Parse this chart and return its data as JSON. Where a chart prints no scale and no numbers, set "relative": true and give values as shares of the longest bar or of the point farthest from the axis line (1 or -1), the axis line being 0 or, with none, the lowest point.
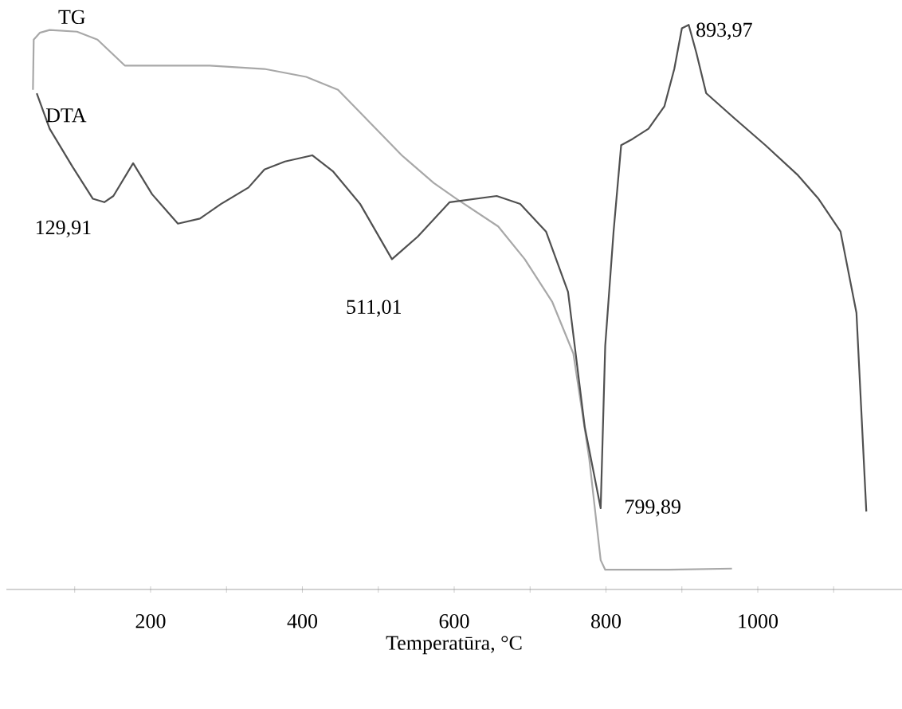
{
  "chart_data": {
    "type": "line",
    "relative": true,
    "xlabel": "Temperatūra, °C",
    "xlim": [
      10,
      1190
    ],
    "xticks": [
      {
        "value": 100,
        "label": null
      },
      200,
      {
        "value": 300,
        "label": null
      },
      400,
      {
        "value": 500,
        "label": null
      },
      600,
      {
        "value": 700,
        "label": null
      },
      800,
      {
        "value": 900,
        "label": null
      },
      1000,
      {
        "value": 1100,
        "label": null
      }
    ],
    "series": [
      {
        "name": "TG",
        "color": "#a8a8a8",
        "x": [
          45,
          46,
          54,
          67,
          103,
          130,
          166,
          208,
          278,
          350,
          405,
          447,
          489,
          531,
          573,
          603,
          658,
          693,
          729,
          757,
          778,
          793,
          799,
          883,
          966
        ],
        "values": [
          0.885,
          0.974,
          0.986,
          0.991,
          0.988,
          0.974,
          0.928,
          0.928,
          0.928,
          0.922,
          0.908,
          0.885,
          0.827,
          0.769,
          0.72,
          0.692,
          0.643,
          0.585,
          0.51,
          0.418,
          0.231,
          0.052,
          0.035,
          0.035,
          0.037
        ]
      },
      {
        "name": "DTA",
        "color": "#505050",
        "x": [
          50,
          67,
          97,
          124,
          139,
          151,
          177,
          202,
          236,
          265,
          293,
          329,
          350,
          377,
          413,
          440,
          476,
          518,
          552,
          594,
          656,
          687,
          721,
          750,
          772,
          793,
          799,
          810,
          820,
          835,
          856,
          877,
          890,
          900,
          909,
          919,
          932,
          968,
          1010,
          1052,
          1080,
          1109,
          1130,
          1143
        ],
        "values": [
          0.879,
          0.816,
          0.749,
          0.692,
          0.686,
          0.697,
          0.755,
          0.7,
          0.648,
          0.657,
          0.683,
          0.712,
          0.744,
          0.758,
          0.769,
          0.741,
          0.683,
          0.585,
          0.625,
          0.686,
          0.697,
          0.683,
          0.634,
          0.527,
          0.288,
          0.144,
          0.432,
          0.634,
          0.787,
          0.798,
          0.816,
          0.856,
          0.922,
          0.994,
          1.0,
          0.951,
          0.879,
          0.836,
          0.787,
          0.735,
          0.692,
          0.634,
          0.49,
          0.138
        ]
      }
    ],
    "annotations": [
      {
        "text": "129,91",
        "x": 129.91,
        "y": 0.686
      },
      {
        "text": "511,01",
        "x": 511.01,
        "y": 0.585
      },
      {
        "text": "893,97",
        "x": 893.97,
        "y": 1.0
      },
      {
        "text": "799,89",
        "x": 799.89,
        "y": 0.144
      }
    ]
  }
}
